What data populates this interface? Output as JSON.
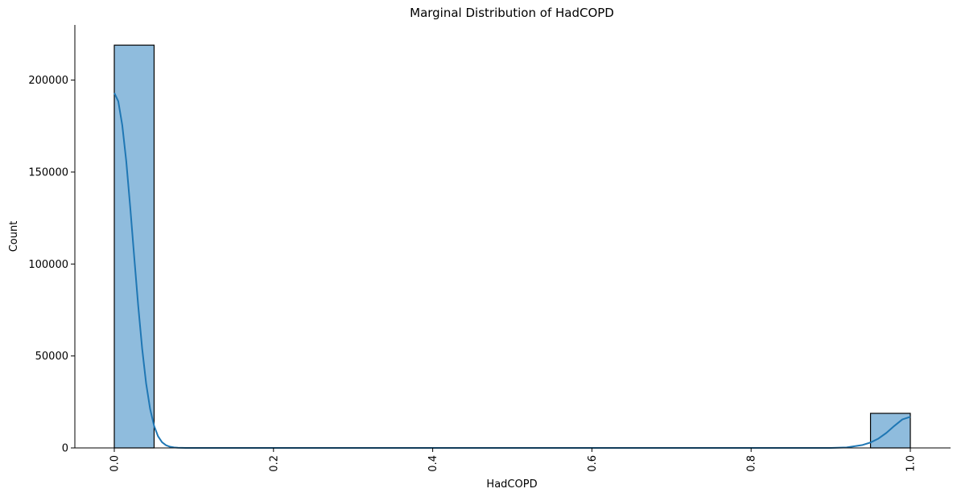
{
  "chart_data": {
    "type": "bar",
    "title": "Marginal Distribution of HadCOPD",
    "xlabel": "HadCOPD",
    "ylabel": "Count",
    "xlim": [
      -0.05,
      1.01
    ],
    "ylim": [
      0,
      230000
    ],
    "x_ticks": [
      0.0,
      0.2,
      0.4,
      0.6,
      0.8,
      1.0
    ],
    "x_tick_labels": [
      "0.0",
      "0.2",
      "0.4",
      "0.6",
      "0.8",
      "1.0"
    ],
    "x_tick_rotation": 90,
    "y_ticks": [
      0,
      50000,
      100000,
      150000,
      200000
    ],
    "y_tick_labels": [
      "0",
      "50000",
      "100000",
      "150000",
      "200000"
    ],
    "bins": [
      {
        "x0": 0.0,
        "x1": 0.05,
        "count": 219000
      },
      {
        "x0": 0.95,
        "x1": 1.0,
        "count": 18800
      }
    ],
    "kde_curve": {
      "x": [
        0.0,
        0.005,
        0.01,
        0.015,
        0.02,
        0.025,
        0.03,
        0.035,
        0.04,
        0.045,
        0.05,
        0.055,
        0.06,
        0.065,
        0.07,
        0.075,
        0.08,
        0.09,
        0.1,
        0.2,
        0.4,
        0.6,
        0.8,
        0.9,
        0.92,
        0.94,
        0.95,
        0.96,
        0.97,
        0.98,
        0.99,
        1.0
      ],
      "y": [
        193000,
        188500,
        175500,
        156000,
        131000,
        104000,
        77500,
        54000,
        35000,
        21200,
        12000,
        6300,
        3100,
        1450,
        650,
        270,
        100,
        20,
        0,
        0,
        0,
        0,
        0,
        0,
        280,
        1600,
        2950,
        5100,
        8200,
        12000,
        15500,
        16900
      ]
    },
    "bar_fill": "#8fbcdd",
    "bar_edge": "#000000",
    "line_color": "#1f77b4",
    "grid": false,
    "spines": [
      "left",
      "bottom"
    ]
  }
}
